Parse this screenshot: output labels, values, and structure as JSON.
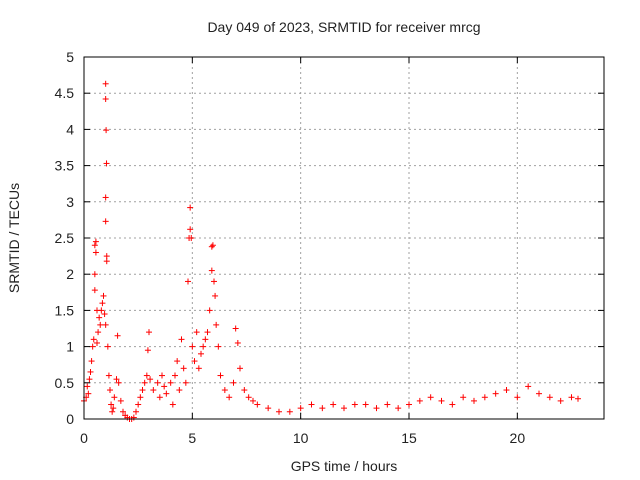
{
  "chart_data": {
    "type": "scatter",
    "title": "Day 049 of 2023, SRMTID for receiver mrcg",
    "xlabel": "GPS time / hours",
    "ylabel": "SRMTID / TECUs",
    "xlim": [
      0,
      24
    ],
    "ylim": [
      0,
      5
    ],
    "x_ticks": [
      0,
      5,
      10,
      15,
      20
    ],
    "x_tick_labels": [
      "0",
      "5",
      "10",
      "15",
      "20"
    ],
    "y_ticks": [
      0,
      0.5,
      1,
      1.5,
      2,
      2.5,
      3,
      3.5,
      4,
      4.5,
      5
    ],
    "y_tick_labels": [
      "0",
      "0.5",
      "1",
      "1.5",
      "2",
      "2.5",
      "3",
      "3.5",
      "4",
      "4.5",
      "5"
    ],
    "grid": true,
    "marker": "+",
    "colors": {
      "series": "#ff0000",
      "grid": "#a0a0a0",
      "frame": "#000000"
    },
    "series": [
      {
        "name": "SRMTID",
        "points": [
          [
            0.0,
            0.25
          ],
          [
            0.1,
            0.3
          ],
          [
            0.15,
            0.45
          ],
          [
            0.2,
            0.35
          ],
          [
            0.25,
            0.55
          ],
          [
            0.3,
            0.65
          ],
          [
            0.35,
            0.8
          ],
          [
            0.4,
            1.0
          ],
          [
            0.45,
            1.1
          ],
          [
            0.5,
            1.78
          ],
          [
            0.5,
            2.0
          ],
          [
            0.5,
            2.4
          ],
          [
            0.55,
            2.45
          ],
          [
            0.55,
            2.3
          ],
          [
            0.6,
            1.5
          ],
          [
            0.6,
            1.05
          ],
          [
            0.65,
            1.2
          ],
          [
            0.7,
            1.4
          ],
          [
            0.75,
            1.3
          ],
          [
            0.8,
            1.5
          ],
          [
            0.85,
            1.6
          ],
          [
            0.9,
            1.7
          ],
          [
            0.95,
            1.45
          ],
          [
            1.0,
            1.3
          ],
          [
            1.0,
            4.63
          ],
          [
            1.0,
            4.42
          ],
          [
            1.02,
            3.99
          ],
          [
            1.04,
            3.53
          ],
          [
            1.0,
            3.06
          ],
          [
            1.0,
            2.73
          ],
          [
            1.05,
            2.25
          ],
          [
            1.05,
            2.18
          ],
          [
            1.1,
            1.0
          ],
          [
            1.15,
            0.6
          ],
          [
            1.2,
            0.4
          ],
          [
            1.25,
            0.2
          ],
          [
            1.3,
            0.1
          ],
          [
            1.35,
            0.15
          ],
          [
            1.4,
            0.3
          ],
          [
            1.5,
            0.55
          ],
          [
            1.55,
            1.15
          ],
          [
            1.6,
            0.5
          ],
          [
            1.7,
            0.25
          ],
          [
            1.8,
            0.1
          ],
          [
            1.9,
            0.05
          ],
          [
            2.0,
            0.02
          ],
          [
            2.1,
            0.0
          ],
          [
            2.2,
            0.0
          ],
          [
            2.3,
            0.02
          ],
          [
            2.4,
            0.1
          ],
          [
            2.5,
            0.2
          ],
          [
            2.6,
            0.3
          ],
          [
            2.7,
            0.4
          ],
          [
            2.8,
            0.5
          ],
          [
            2.9,
            0.6
          ],
          [
            2.95,
            0.95
          ],
          [
            3.0,
            1.2
          ],
          [
            3.05,
            0.55
          ],
          [
            3.2,
            0.4
          ],
          [
            3.4,
            0.5
          ],
          [
            3.5,
            0.3
          ],
          [
            3.6,
            0.6
          ],
          [
            3.7,
            0.45
          ],
          [
            3.8,
            0.35
          ],
          [
            4.0,
            0.5
          ],
          [
            4.1,
            0.2
          ],
          [
            4.2,
            0.6
          ],
          [
            4.3,
            0.8
          ],
          [
            4.4,
            0.4
          ],
          [
            4.5,
            1.1
          ],
          [
            4.6,
            0.7
          ],
          [
            4.7,
            0.5
          ],
          [
            4.8,
            1.9
          ],
          [
            4.85,
            2.5
          ],
          [
            4.9,
            2.62
          ],
          [
            4.9,
            2.92
          ],
          [
            4.95,
            2.5
          ],
          [
            5.0,
            1.0
          ],
          [
            5.1,
            0.8
          ],
          [
            5.2,
            1.2
          ],
          [
            5.3,
            0.7
          ],
          [
            5.4,
            0.9
          ],
          [
            5.5,
            1.0
          ],
          [
            5.6,
            1.1
          ],
          [
            5.7,
            1.2
          ],
          [
            5.8,
            1.5
          ],
          [
            5.9,
            2.05
          ],
          [
            5.9,
            2.38
          ],
          [
            5.95,
            2.4
          ],
          [
            6.0,
            1.9
          ],
          [
            6.05,
            1.7
          ],
          [
            6.1,
            1.3
          ],
          [
            6.2,
            1.0
          ],
          [
            6.3,
            0.6
          ],
          [
            6.5,
            0.4
          ],
          [
            6.7,
            0.3
          ],
          [
            6.9,
            0.5
          ],
          [
            7.0,
            1.25
          ],
          [
            7.1,
            1.05
          ],
          [
            7.2,
            0.7
          ],
          [
            7.4,
            0.4
          ],
          [
            7.6,
            0.3
          ],
          [
            7.8,
            0.25
          ],
          [
            8.0,
            0.2
          ],
          [
            8.5,
            0.15
          ],
          [
            9.0,
            0.1
          ],
          [
            9.5,
            0.1
          ],
          [
            10.0,
            0.15
          ],
          [
            10.5,
            0.2
          ],
          [
            11.0,
            0.15
          ],
          [
            11.5,
            0.2
          ],
          [
            12.0,
            0.15
          ],
          [
            12.5,
            0.2
          ],
          [
            13.0,
            0.2
          ],
          [
            13.5,
            0.15
          ],
          [
            14.0,
            0.2
          ],
          [
            14.5,
            0.15
          ],
          [
            15.0,
            0.2
          ],
          [
            15.5,
            0.25
          ],
          [
            16.0,
            0.3
          ],
          [
            16.5,
            0.25
          ],
          [
            17.0,
            0.2
          ],
          [
            17.5,
            0.3
          ],
          [
            18.0,
            0.25
          ],
          [
            18.5,
            0.3
          ],
          [
            19.0,
            0.35
          ],
          [
            19.5,
            0.4
          ],
          [
            20.0,
            0.3
          ],
          [
            20.5,
            0.45
          ],
          [
            21.0,
            0.35
          ],
          [
            21.5,
            0.3
          ],
          [
            22.0,
            0.25
          ],
          [
            22.5,
            0.3
          ],
          [
            22.8,
            0.28
          ]
        ]
      }
    ]
  }
}
